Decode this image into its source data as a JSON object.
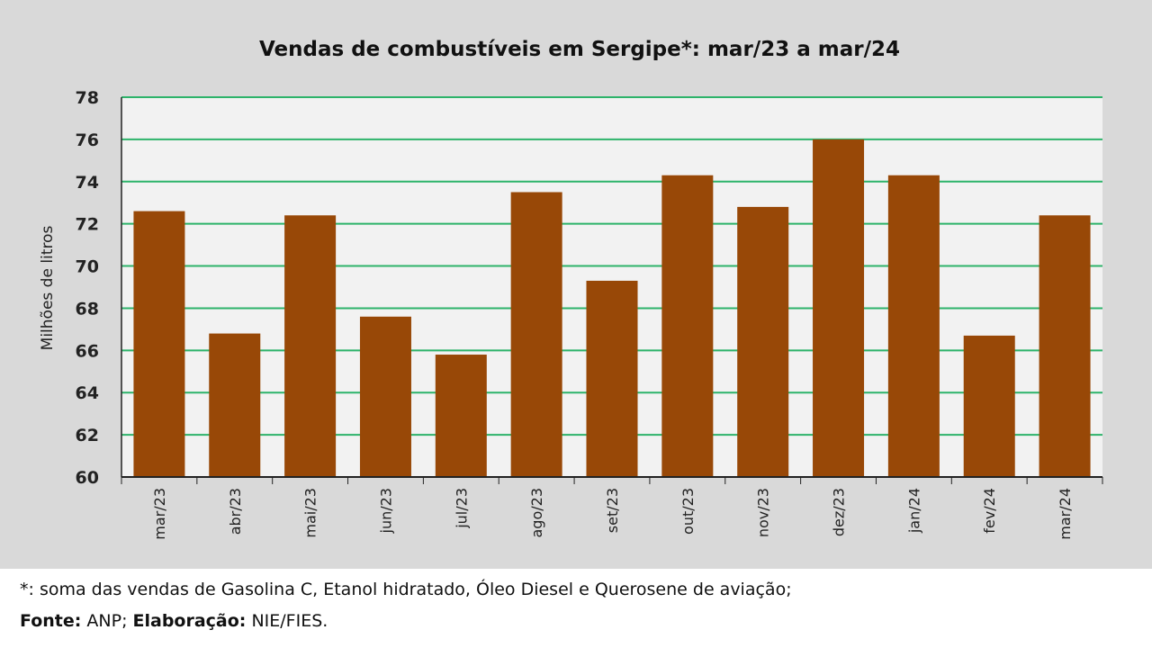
{
  "chart_data": {
    "type": "bar",
    "title": "Vendas de combustíveis em Sergipe*: mar/23 a mar/24",
    "xlabel": "",
    "ylabel": "Milhões de litros",
    "ylim": [
      60,
      78
    ],
    "yticks": [
      60,
      62,
      64,
      66,
      68,
      70,
      72,
      74,
      76,
      78
    ],
    "grid": true,
    "categories": [
      "mar/23",
      "abr/23",
      "mai/23",
      "jun/23",
      "jul/23",
      "ago/23",
      "set/23",
      "out/23",
      "nov/23",
      "dez/23",
      "jan/24",
      "fev/24",
      "mar/24"
    ],
    "values": [
      72.6,
      66.8,
      72.4,
      67.6,
      65.8,
      73.5,
      69.3,
      74.3,
      72.8,
      76.0,
      74.3,
      66.7,
      72.4
    ],
    "colors": {
      "bar": "#984807",
      "grid": "#2db36a",
      "plot_bg": "#f2f2f2",
      "bg": "#d9d9d9"
    }
  },
  "footer": {
    "note": "*: soma das vendas de Gasolina C, Etanol hidratado, Óleo Diesel e Querosene de aviação;",
    "source_label": "Fonte:",
    "source_value": " ANP; ",
    "elab_label": "Elaboração:",
    "elab_value": " NIE/FIES."
  }
}
